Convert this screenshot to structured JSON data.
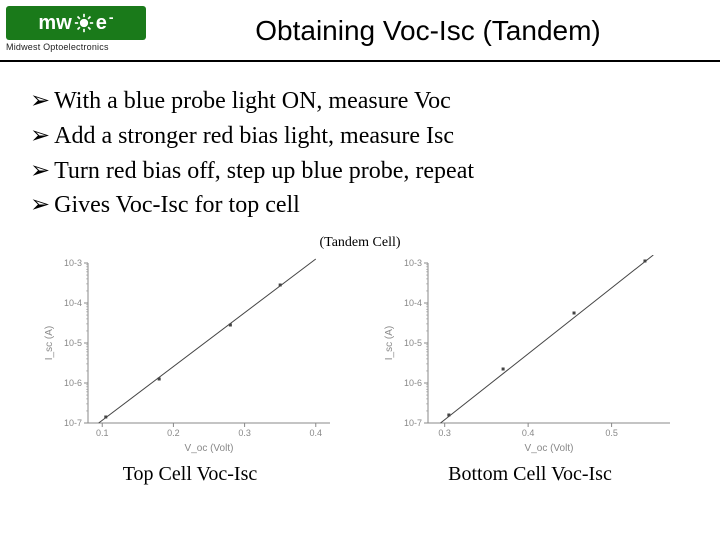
{
  "header": {
    "logo_text_left": "mw",
    "logo_text_right": "e",
    "logo_minus": "-",
    "logo_sub": "Midwest Optoelectronics",
    "title": "Obtaining Voc-Isc (Tandem)"
  },
  "bullets": [
    "With a blue probe light ON, measure Voc",
    "Add a stronger red bias light, measure Isc",
    "Turn red bias off, step up blue probe, repeat",
    "Gives Voc-Isc for top cell"
  ],
  "tandem_label": "(Tandem Cell)",
  "chart_left": {
    "type": "scatter-line-loglinear",
    "caption": "Top Cell Voc-Isc",
    "xlabel": "V_oc (Volt)",
    "ylabel": "I_sc (A)",
    "xlim": [
      0.08,
      0.42
    ],
    "xticks": [
      0.1,
      0.2,
      0.3,
      0.4
    ],
    "ylim_exp": [
      -7,
      -3
    ],
    "yticks_exp": [
      -7,
      -6,
      -5,
      -4,
      -3
    ],
    "points": [
      {
        "x": 0.105,
        "y_exp": -6.85
      },
      {
        "x": 0.18,
        "y_exp": -5.9
      },
      {
        "x": 0.28,
        "y_exp": -4.55
      },
      {
        "x": 0.35,
        "y_exp": -3.55
      }
    ],
    "fit_line": {
      "x1": 0.095,
      "y1_exp": -7.0,
      "x2": 0.4,
      "y2_exp": -2.9
    },
    "axis_color": "#888888",
    "tick_color": "#888888",
    "label_color": "#888888",
    "data_color": "#444444",
    "line_width": 1.0,
    "marker_size": 3,
    "font_size": 9
  },
  "chart_right": {
    "type": "scatter-line-loglinear",
    "caption": "Bottom Cell Voc-Isc",
    "xlabel": "V_oc (Volt)",
    "ylabel": "I_sc (A)",
    "xlim": [
      0.28,
      0.57
    ],
    "xticks": [
      0.3,
      0.4,
      0.5
    ],
    "ylim_exp": [
      -7,
      -3
    ],
    "yticks_exp": [
      -7,
      -6,
      -5,
      -4,
      -3
    ],
    "points": [
      {
        "x": 0.305,
        "y_exp": -6.8
      },
      {
        "x": 0.37,
        "y_exp": -5.65
      },
      {
        "x": 0.455,
        "y_exp": -4.25
      },
      {
        "x": 0.54,
        "y_exp": -2.95
      }
    ],
    "fit_line": {
      "x1": 0.295,
      "y1_exp": -7.0,
      "x2": 0.55,
      "y2_exp": -2.8
    },
    "axis_color": "#888888",
    "tick_color": "#888888",
    "label_color": "#888888",
    "data_color": "#444444",
    "line_width": 1.0,
    "marker_size": 3,
    "font_size": 9
  }
}
